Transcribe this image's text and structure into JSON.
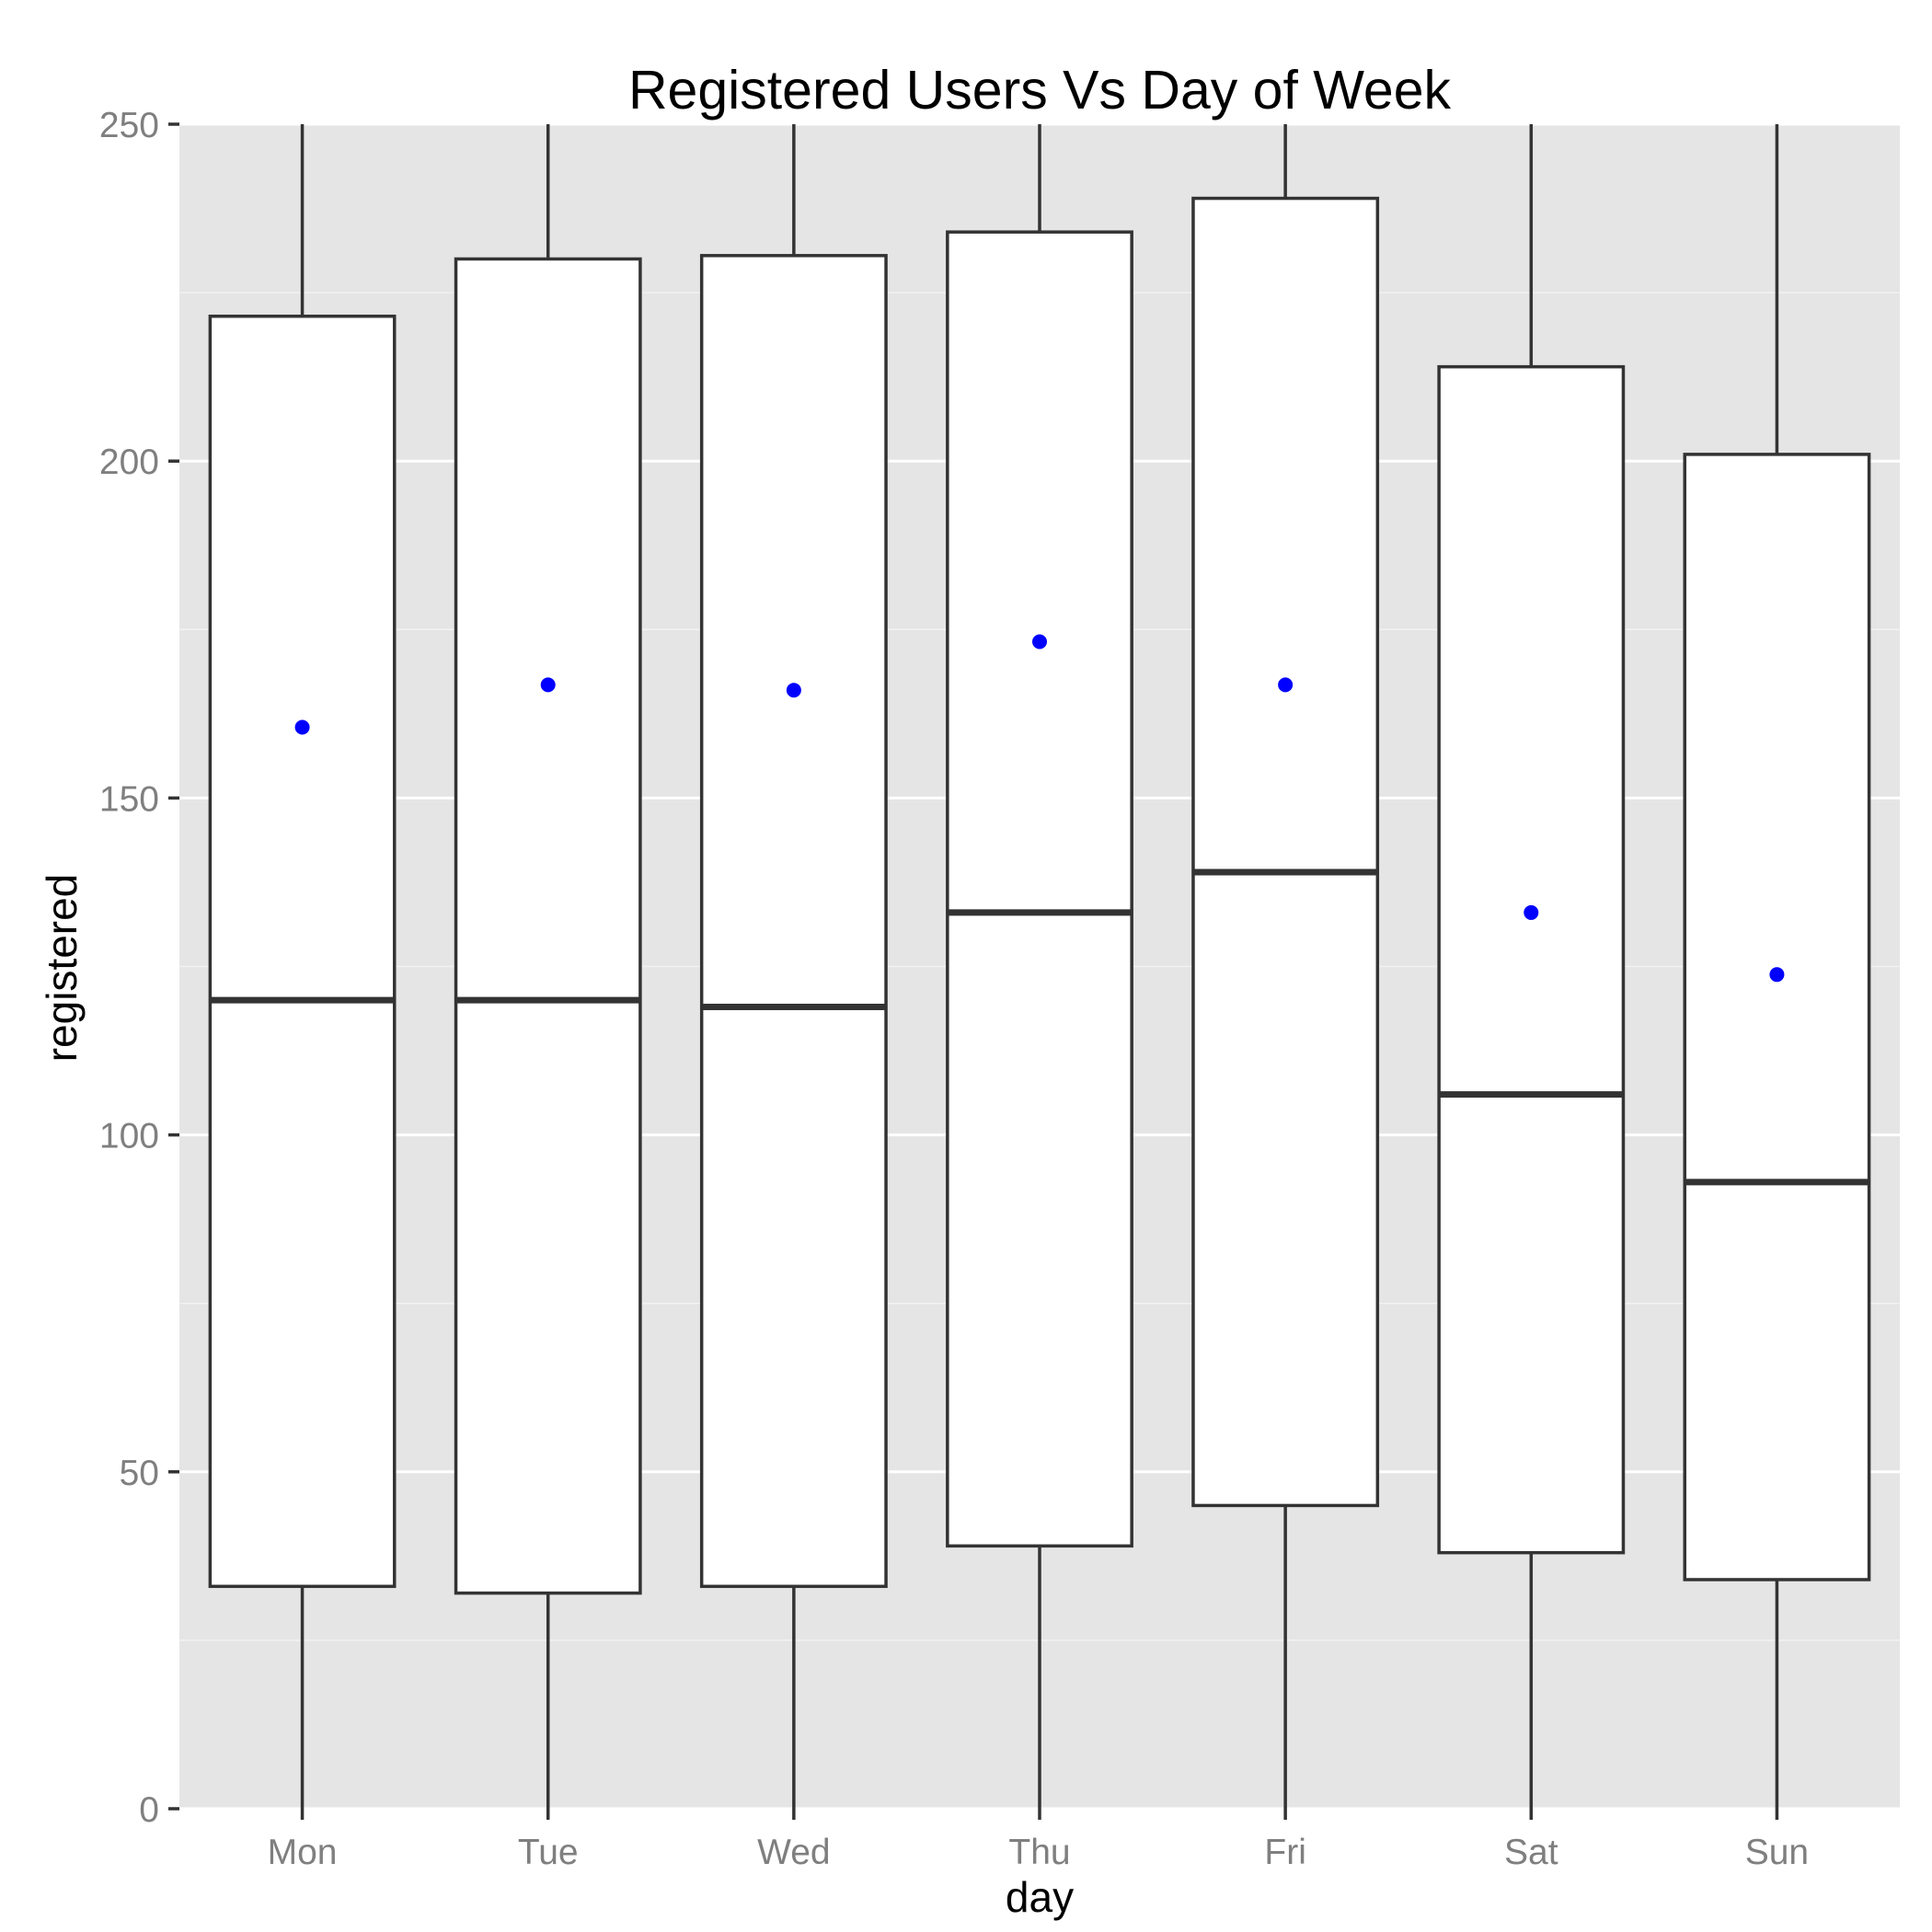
{
  "chart_data": {
    "type": "boxplot",
    "title": "Registered Users Vs Day of Week",
    "xlabel": "day",
    "ylabel": "registered",
    "categories": [
      "Mon",
      "Tue",
      "Wed",
      "Thu",
      "Fri",
      "Sat",
      "Sun"
    ],
    "ylim": [
      0,
      250
    ],
    "yticks": [
      0,
      50,
      100,
      150,
      200,
      250
    ],
    "boxes": [
      {
        "label": "Mon",
        "whisker_low": 0,
        "q1": 33,
        "median": 120,
        "q3": 221.5,
        "whisker_high": 250
      },
      {
        "label": "Tue",
        "whisker_low": 0,
        "q1": 32,
        "median": 120,
        "q3": 230,
        "whisker_high": 250
      },
      {
        "label": "Wed",
        "whisker_low": 0,
        "q1": 33,
        "median": 119,
        "q3": 230.5,
        "whisker_high": 250
      },
      {
        "label": "Thu",
        "whisker_low": 0,
        "q1": 39,
        "median": 133,
        "q3": 234,
        "whisker_high": 250
      },
      {
        "label": "Fri",
        "whisker_low": 0,
        "q1": 45,
        "median": 139,
        "q3": 239,
        "whisker_high": 250
      },
      {
        "label": "Sat",
        "whisker_low": 0,
        "q1": 38,
        "median": 106,
        "q3": 214,
        "whisker_high": 250
      },
      {
        "label": "Sun",
        "whisker_low": 0,
        "q1": 34,
        "median": 93,
        "q3": 201,
        "whisker_high": 250
      }
    ],
    "means": [
      160.5,
      166.8,
      166,
      173.2,
      166.8,
      133,
      123.8
    ],
    "mean_color": "#0000ff",
    "panel_background": "#e5e5e5",
    "grid": true,
    "legend": "none"
  }
}
